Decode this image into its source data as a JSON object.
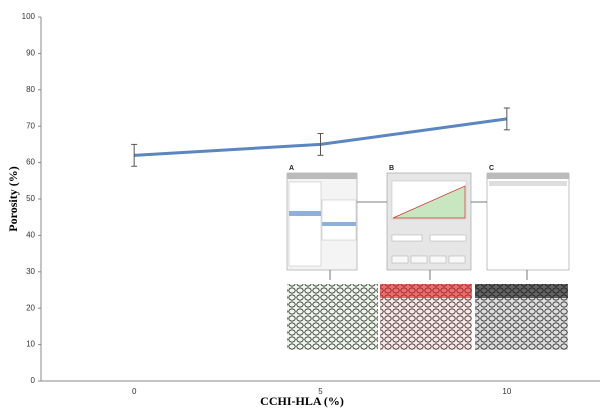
{
  "chart_data": {
    "type": "line",
    "xlabel": "CCHI-HLA (%)",
    "ylabel": "Porosity (%)",
    "categories": [
      "0",
      "5",
      "10"
    ],
    "values": [
      62,
      65,
      72
    ],
    "errors": [
      3,
      3,
      3
    ],
    "color": "#5b86c0",
    "ylim": [
      0,
      100
    ],
    "yticks": [
      0,
      10,
      20,
      30,
      40,
      50,
      60,
      70,
      80,
      90,
      100
    ],
    "grid": false,
    "annotations": [
      "A",
      "B",
      "C"
    ]
  }
}
